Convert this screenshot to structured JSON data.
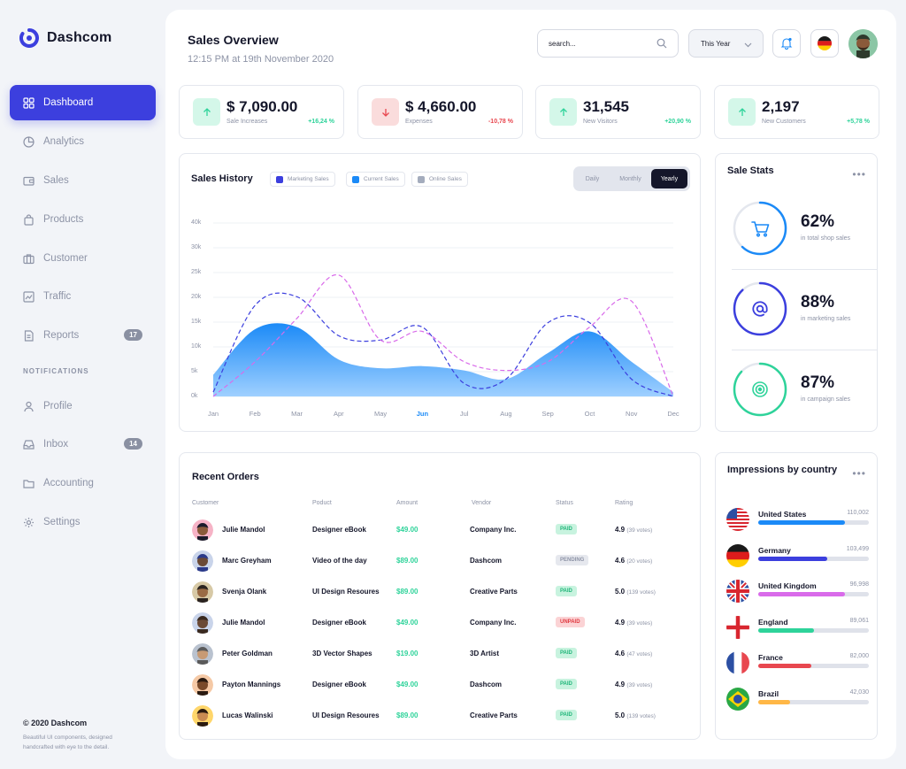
{
  "app": {
    "name": "Dashcom"
  },
  "sidebar": {
    "items": [
      {
        "label": "Dashboard",
        "icon": "grid-icon"
      },
      {
        "label": "Analytics",
        "icon": "pie-icon"
      },
      {
        "label": "Sales",
        "icon": "wallet-icon"
      },
      {
        "label": "Products",
        "icon": "bag-icon"
      },
      {
        "label": "Customer",
        "icon": "briefcase-icon"
      },
      {
        "label": "Traffic",
        "icon": "chart-icon"
      },
      {
        "label": "Reports",
        "icon": "document-icon",
        "badge": "17"
      }
    ],
    "section_label": "NOTIFICATIONS",
    "notif_items": [
      {
        "label": "Profile",
        "icon": "user-icon"
      },
      {
        "label": "Inbox",
        "icon": "inbox-icon",
        "badge": "14"
      },
      {
        "label": "Accounting",
        "icon": "folder-icon"
      },
      {
        "label": "Settings",
        "icon": "gear-icon"
      }
    ],
    "footer": {
      "copyright": "© 2020 Dashcom",
      "description": "Beautiful UI components, designed handcrafted with eye to the detail."
    }
  },
  "header": {
    "title": "Sales Overview",
    "subtitle": "12:15 PM at 19th November 2020",
    "search_placeholder": "search...",
    "period": "This Year"
  },
  "stats": [
    {
      "value": "$ 7,090.00",
      "label": "Sale Increases",
      "change": "+16,24 %",
      "direction": "up"
    },
    {
      "value": "$ 4,660.00",
      "label": "Expenses",
      "change": "-10,78 %",
      "direction": "down"
    },
    {
      "value": "31,545",
      "label": "New Visitors",
      "change": "+20,90 %",
      "direction": "up"
    },
    {
      "value": "2,197",
      "label": "New Customers",
      "change": "+5,78 %",
      "direction": "up"
    }
  ],
  "sales_history": {
    "title": "Sales History",
    "legend": [
      "Marketing Sales",
      "Current Sales",
      "Online Sales"
    ],
    "tabs": [
      "Daily",
      "Monthly",
      "Yearly"
    ],
    "active_tab": "Yearly",
    "active_month": "Jun"
  },
  "chart_data": {
    "type": "area",
    "x": [
      "Jan",
      "Feb",
      "Mar",
      "Apr",
      "May",
      "Jun",
      "Jul",
      "Aug",
      "Sep",
      "Oct",
      "Nov",
      "Dec"
    ],
    "y_ticks": [
      "40k",
      "30k",
      "25k",
      "20k",
      "15k",
      "10k",
      "5k",
      "0k"
    ],
    "ylim": [
      0,
      40
    ],
    "series": [
      {
        "name": "Current Sales",
        "style": "area",
        "color": "#1b8af7",
        "values": [
          5,
          15.5,
          16,
          8.5,
          6.5,
          7,
          6,
          4,
          10,
          15,
          8,
          1
        ]
      },
      {
        "name": "Marketing Sales",
        "style": "dashed",
        "color": "#3c3fde",
        "values": [
          1,
          21,
          23,
          14,
          13,
          16,
          3,
          4,
          17,
          17,
          4,
          0
        ]
      },
      {
        "name": "Online Sales",
        "style": "dashed",
        "color": "#d96bea",
        "values": [
          0,
          8,
          18,
          28,
          13,
          15,
          8,
          6,
          8,
          16,
          22,
          0
        ]
      }
    ]
  },
  "sale_stats": {
    "title": "Sale Stats",
    "items": [
      {
        "pct": "62%",
        "label": "in total shop sales",
        "value": 0.62,
        "color": "#1b8af7",
        "icon": "cart-icon"
      },
      {
        "pct": "88%",
        "label": "in marketing sales",
        "value": 0.88,
        "color": "#3c3fde",
        "icon": "at-icon"
      },
      {
        "pct": "87%",
        "label": "in campaign sales",
        "value": 0.87,
        "color": "#2ed39a",
        "icon": "target-icon"
      }
    ]
  },
  "orders": {
    "title": "Recent Orders",
    "columns": [
      "Customer",
      "Poduct",
      "Amount",
      "Vendor",
      "Status",
      "Rating"
    ],
    "rows": [
      {
        "customer": "Julie Mandol",
        "product": "Designer eBook",
        "amount": "$49.00",
        "vendor": "Company Inc.",
        "status": "PAID",
        "rating": "4.9",
        "votes": "(39 votes)"
      },
      {
        "customer": "Marc Greyham",
        "product": "Video of the day",
        "amount": "$89.00",
        "vendor": "Dashcom",
        "status": "PENDING",
        "rating": "4.6",
        "votes": "(20 votes)"
      },
      {
        "customer": "Svenja Olank",
        "product": "UI Design Resoures",
        "amount": "$89.00",
        "vendor": "Creative Parts",
        "status": "PAID",
        "rating": "5.0",
        "votes": "(139 votes)"
      },
      {
        "customer": "Julie Mandol",
        "product": "Designer eBook",
        "amount": "$49.00",
        "vendor": "Company Inc.",
        "status": "UNPAID",
        "rating": "4.9",
        "votes": "(39 votes)"
      },
      {
        "customer": "Peter Goldman",
        "product": "3D Vector Shapes",
        "amount": "$19.00",
        "vendor": "3D Artist",
        "status": "PAID",
        "rating": "4.6",
        "votes": "(47 votes)"
      },
      {
        "customer": "Payton Mannings",
        "product": "Designer eBook",
        "amount": "$49.00",
        "vendor": "Dashcom",
        "status": "PAID",
        "rating": "4.9",
        "votes": "(39 votes)"
      },
      {
        "customer": "Lucas Walinski",
        "product": "UI Design Resoures",
        "amount": "$89.00",
        "vendor": "Creative Parts",
        "status": "PAID",
        "rating": "5.0",
        "votes": "(139 votes)"
      }
    ]
  },
  "impressions": {
    "title": "Impressions by country",
    "countries": [
      {
        "name": "United States",
        "value": "110,002",
        "share": 0.78,
        "color": "#1b8af7",
        "flag": "us-flag-icon"
      },
      {
        "name": "Germany",
        "value": "103,499",
        "share": 0.62,
        "color": "#3c3fde",
        "flag": "de-flag-icon"
      },
      {
        "name": "United Kingdom",
        "value": "96,998",
        "share": 0.78,
        "color": "#d96bea",
        "flag": "uk-flag-icon"
      },
      {
        "name": "England",
        "value": "89,061",
        "share": 0.5,
        "color": "#2ed39a",
        "flag": "en-flag-icon"
      },
      {
        "name": "France",
        "value": "82,000",
        "share": 0.48,
        "color": "#e8474f",
        "flag": "fr-flag-icon"
      },
      {
        "name": "Brazil",
        "value": "42,030",
        "share": 0.29,
        "color": "#ffb746",
        "flag": "br-flag-icon"
      }
    ]
  }
}
